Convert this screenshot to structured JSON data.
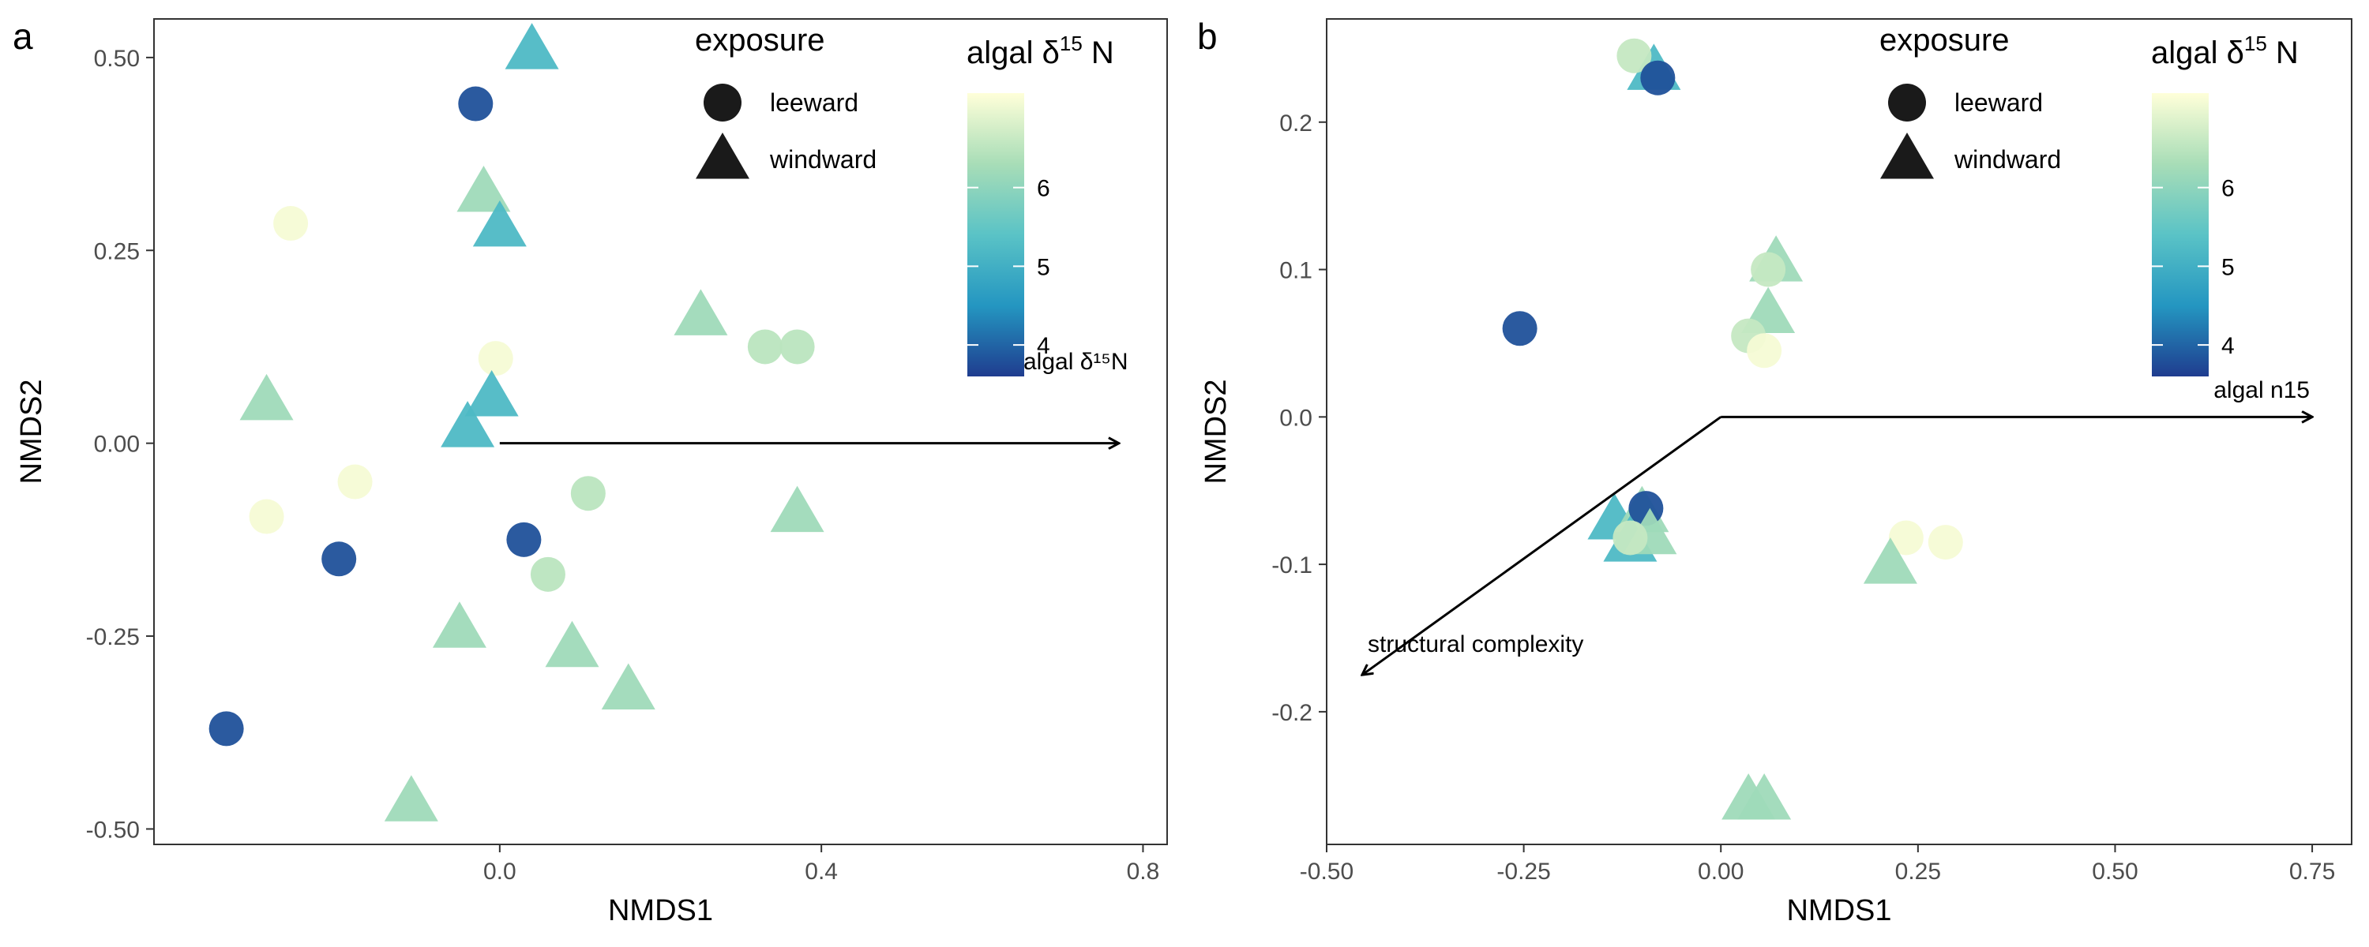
{
  "colors": {
    "scale_low": "#1f3d8f",
    "scale_mid_low": "#2496c1",
    "scale_mid": "#5ac3c6",
    "scale_mid_high": "#a8ddb7",
    "scale_high": "#ffffd9",
    "arrow": "#000000"
  },
  "chart_data": [
    {
      "panel": "a",
      "type": "scatter",
      "xlabel": "NMDS1",
      "ylabel": "NMDS2",
      "xlim": [
        -0.43,
        0.83
      ],
      "ylim": [
        -0.52,
        0.55
      ],
      "xticks": [
        0.0,
        0.4,
        0.8
      ],
      "xtick_labels": [
        "0.0",
        "0.4",
        "0.8"
      ],
      "yticks": [
        -0.5,
        -0.25,
        0.0,
        0.25,
        0.5
      ],
      "ytick_labels": [
        "-0.50",
        "-0.25",
        "0.00",
        "0.25",
        "0.50"
      ],
      "legend_shape": {
        "title": "exposure",
        "items": [
          {
            "label": "leeward",
            "shape": "circle"
          },
          {
            "label": "windward",
            "shape": "triangle"
          }
        ]
      },
      "legend_color": {
        "title_main": "algal δ",
        "title_sup": "15",
        "title_end": "N",
        "range": [
          3.6,
          7.2
        ],
        "ticks": [
          4,
          5,
          6
        ],
        "tick_labels": [
          "4",
          "5",
          "6"
        ]
      },
      "vectors": [
        {
          "label": "algal δ¹⁵N",
          "x": 0.77,
          "y": 0.0
        }
      ],
      "points": [
        {
          "x": -0.03,
          "y": 0.44,
          "shape": "circle",
          "n15": 3.8
        },
        {
          "x": -0.26,
          "y": 0.285,
          "shape": "circle",
          "n15": 7.1
        },
        {
          "x": -0.005,
          "y": 0.11,
          "shape": "circle",
          "n15": 7.1
        },
        {
          "x": -0.18,
          "y": -0.05,
          "shape": "circle",
          "n15": 7.1
        },
        {
          "x": -0.29,
          "y": -0.095,
          "shape": "circle",
          "n15": 7.1
        },
        {
          "x": -0.2,
          "y": -0.15,
          "shape": "circle",
          "n15": 3.8
        },
        {
          "x": 0.03,
          "y": -0.125,
          "shape": "circle",
          "n15": 3.8
        },
        {
          "x": 0.11,
          "y": -0.065,
          "shape": "circle",
          "n15": 6.5
        },
        {
          "x": 0.06,
          "y": -0.17,
          "shape": "circle",
          "n15": 6.5
        },
        {
          "x": 0.33,
          "y": 0.125,
          "shape": "circle",
          "n15": 6.5
        },
        {
          "x": 0.37,
          "y": 0.125,
          "shape": "circle",
          "n15": 6.5
        },
        {
          "x": -0.34,
          "y": -0.37,
          "shape": "circle",
          "n15": 3.8
        },
        {
          "x": 0.04,
          "y": 0.51,
          "shape": "triangle",
          "n15": 5.2
        },
        {
          "x": -0.02,
          "y": 0.325,
          "shape": "triangle",
          "n15": 6.2
        },
        {
          "x": 0.0,
          "y": 0.28,
          "shape": "triangle",
          "n15": 5.2
        },
        {
          "x": 0.25,
          "y": 0.165,
          "shape": "triangle",
          "n15": 6.2
        },
        {
          "x": -0.29,
          "y": 0.055,
          "shape": "triangle",
          "n15": 6.2
        },
        {
          "x": -0.01,
          "y": 0.06,
          "shape": "triangle",
          "n15": 5.2
        },
        {
          "x": -0.04,
          "y": 0.02,
          "shape": "triangle",
          "n15": 5.2
        },
        {
          "x": 0.37,
          "y": -0.09,
          "shape": "triangle",
          "n15": 6.2
        },
        {
          "x": -0.05,
          "y": -0.24,
          "shape": "triangle",
          "n15": 6.2
        },
        {
          "x": 0.09,
          "y": -0.265,
          "shape": "triangle",
          "n15": 6.2
        },
        {
          "x": 0.16,
          "y": -0.32,
          "shape": "triangle",
          "n15": 6.2
        },
        {
          "x": -0.11,
          "y": -0.465,
          "shape": "triangle",
          "n15": 6.2
        }
      ]
    },
    {
      "panel": "b",
      "type": "scatter",
      "xlabel": "NMDS1",
      "ylabel": "NMDS2",
      "xlim": [
        -0.5,
        0.8
      ],
      "ylim": [
        -0.29,
        0.27
      ],
      "xticks": [
        -0.5,
        -0.25,
        0.0,
        0.25,
        0.5,
        0.75
      ],
      "xtick_labels": [
        "-0.50",
        "-0.25",
        "0.00",
        "0.25",
        "0.50",
        "0.75"
      ],
      "yticks": [
        -0.2,
        -0.1,
        0.0,
        0.1,
        0.2
      ],
      "ytick_labels": [
        "-0.2",
        "-0.1",
        "0.0",
        "0.1",
        "0.2"
      ],
      "legend_shape": {
        "title": "exposure",
        "items": [
          {
            "label": "leeward",
            "shape": "circle"
          },
          {
            "label": "windward",
            "shape": "triangle"
          }
        ]
      },
      "legend_color": {
        "title_main": "algal δ",
        "title_sup": "15",
        "title_end": "N",
        "range": [
          3.6,
          7.2
        ],
        "ticks": [
          4,
          5,
          6
        ],
        "tick_labels": [
          "4",
          "5",
          "6"
        ]
      },
      "vectors": [
        {
          "label": "algal n15",
          "x": 0.75,
          "y": 0.0
        },
        {
          "label": "structural complexity",
          "x": -0.455,
          "y": -0.175
        }
      ],
      "points": [
        {
          "x": -0.255,
          "y": 0.06,
          "shape": "circle",
          "n15": 3.8
        },
        {
          "x": -0.085,
          "y": 0.235,
          "shape": "triangle",
          "n15": 5.2
        },
        {
          "x": -0.11,
          "y": 0.245,
          "shape": "circle",
          "n15": 6.6
        },
        {
          "x": -0.08,
          "y": 0.23,
          "shape": "circle",
          "n15": 3.8
        },
        {
          "x": 0.07,
          "y": 0.105,
          "shape": "triangle",
          "n15": 6.2
        },
        {
          "x": 0.06,
          "y": 0.1,
          "shape": "circle",
          "n15": 6.6
        },
        {
          "x": 0.06,
          "y": 0.07,
          "shape": "triangle",
          "n15": 6.2
        },
        {
          "x": 0.035,
          "y": 0.055,
          "shape": "circle",
          "n15": 6.6
        },
        {
          "x": 0.055,
          "y": 0.045,
          "shape": "circle",
          "n15": 7.1
        },
        {
          "x": -0.135,
          "y": -0.07,
          "shape": "triangle",
          "n15": 5.2
        },
        {
          "x": -0.1,
          "y": -0.065,
          "shape": "triangle",
          "n15": 6.2
        },
        {
          "x": -0.095,
          "y": -0.062,
          "shape": "circle",
          "n15": 3.8
        },
        {
          "x": -0.115,
          "y": -0.085,
          "shape": "triangle",
          "n15": 5.2
        },
        {
          "x": -0.09,
          "y": -0.08,
          "shape": "triangle",
          "n15": 6.2
        },
        {
          "x": -0.115,
          "y": -0.082,
          "shape": "circle",
          "n15": 6.6
        },
        {
          "x": 0.235,
          "y": -0.082,
          "shape": "circle",
          "n15": 7.1
        },
        {
          "x": 0.285,
          "y": -0.085,
          "shape": "circle",
          "n15": 7.1
        },
        {
          "x": 0.215,
          "y": -0.1,
          "shape": "triangle",
          "n15": 6.2
        },
        {
          "x": 0.035,
          "y": -0.26,
          "shape": "triangle",
          "n15": 6.2
        },
        {
          "x": 0.055,
          "y": -0.26,
          "shape": "triangle",
          "n15": 6.2
        }
      ]
    }
  ]
}
